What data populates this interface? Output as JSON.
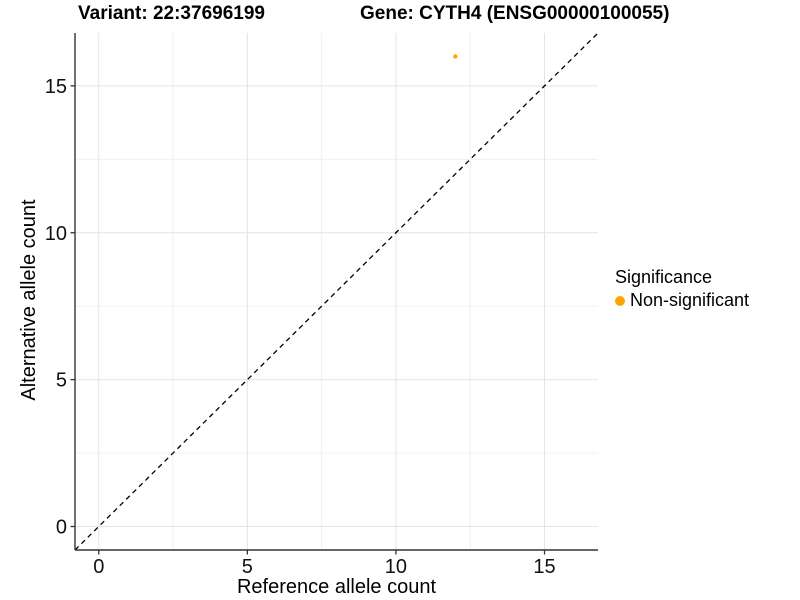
{
  "header": {
    "variant_title": "Variant: 22:37696199",
    "gene_title": "Gene: CYTH4 (ENSG00000100055)"
  },
  "chart_data": {
    "type": "scatter",
    "title": "Variant: 22:37696199 / Gene: CYTH4 (ENSG00000100055)",
    "xlabel": "Reference allele count",
    "ylabel": "Alternative allele count",
    "xlim": [
      -0.8,
      16.8
    ],
    "ylim": [
      -0.8,
      16.8
    ],
    "x_ticks": [
      0,
      5,
      10,
      15
    ],
    "y_ticks": [
      0,
      5,
      10,
      15
    ],
    "x_minor_ticks": [
      2.5,
      7.5,
      12.5
    ],
    "y_minor_ticks": [
      2.5,
      7.5,
      12.5
    ],
    "grid": true,
    "points": [
      {
        "x": 12,
        "y": 16,
        "series": "Non-significant"
      }
    ],
    "reference_line": {
      "kind": "identity",
      "slope": 1,
      "intercept": 0,
      "style": "dashed",
      "color": "#000000"
    },
    "series_colors": {
      "Non-significant": "#FFA500"
    },
    "point_radius_px": 2.2,
    "legend_position": "right"
  },
  "legend": {
    "title": "Significance",
    "items": [
      {
        "label": "Non-significant",
        "color": "#FFA500",
        "marker": "circle-icon"
      }
    ]
  },
  "colors": {
    "background": "#FFFFFF",
    "grid_major": "#E4E4E4",
    "grid_minor": "#F0F0F0",
    "axis_line": "#333333",
    "text": "#000000",
    "point_orange": "#FFA500"
  }
}
